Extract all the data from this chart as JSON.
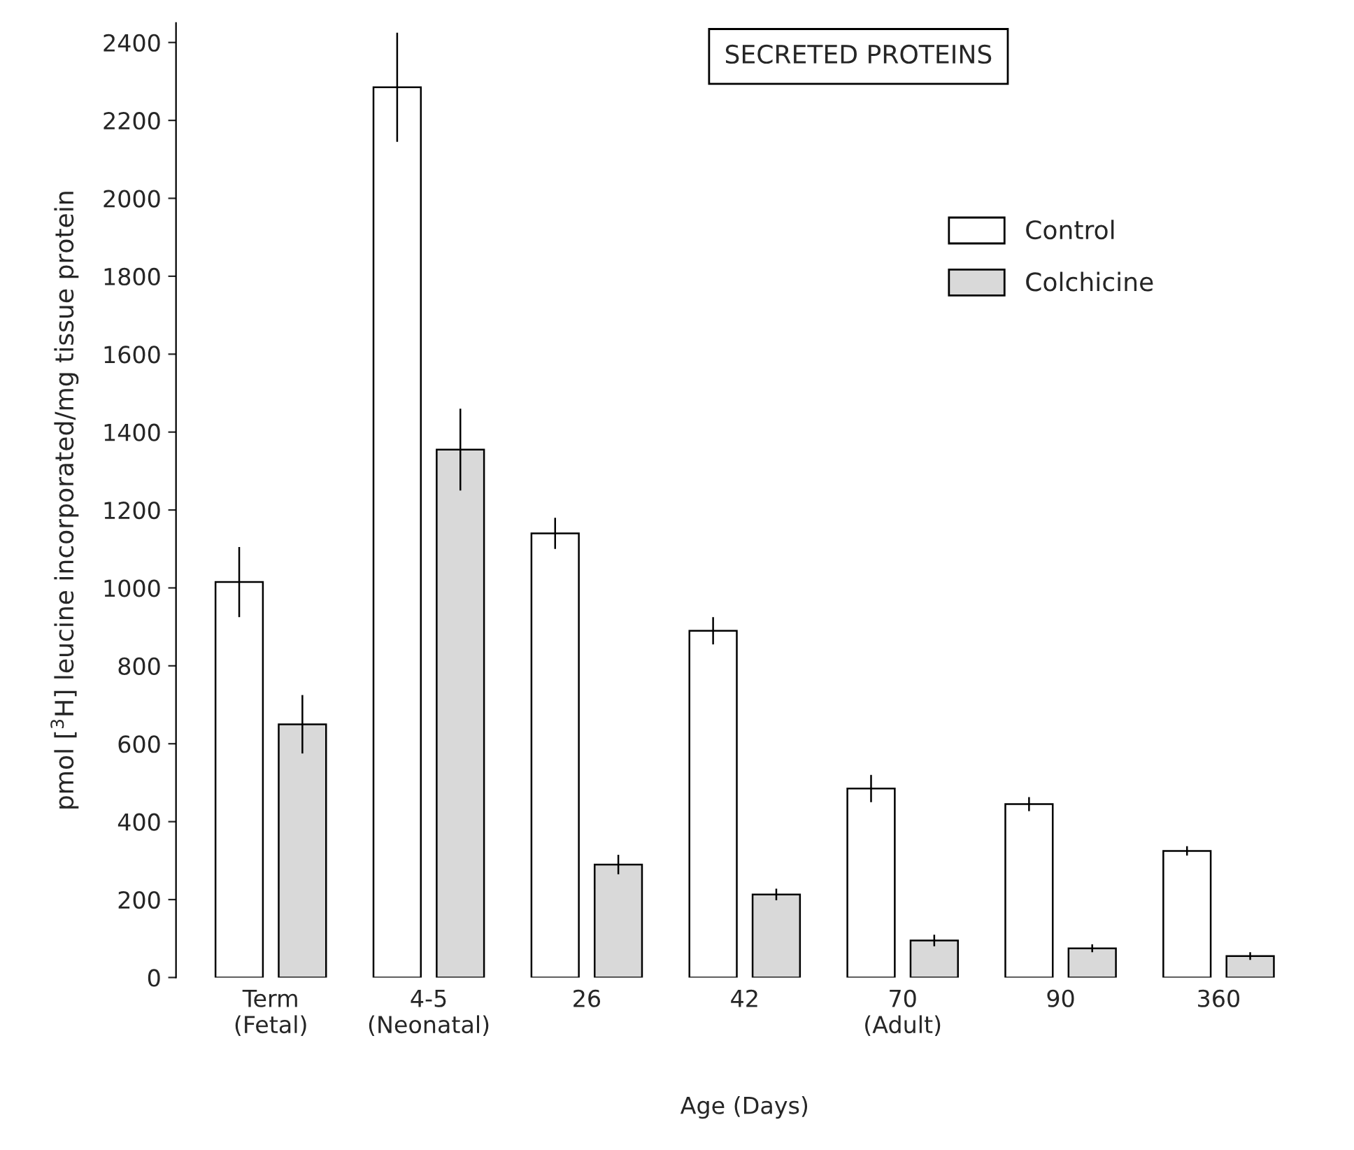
{
  "chart_data": {
    "type": "bar",
    "title": "SECRETED PROTEINS",
    "xlabel": "Age (Days)",
    "ylabel": "pmol [$^{3}$H] leucine incorporated/mg tissue protein",
    "categories": [
      "Term\n(Fetal)",
      "4-5\n(Neonatal)",
      "26",
      "42",
      "70\n(Adult)",
      "90",
      "360"
    ],
    "series": [
      {
        "name": "Control",
        "color": "#ffffff",
        "values": [
          1015,
          2285,
          1140,
          890,
          485,
          445,
          325
        ],
        "errors": [
          90,
          140,
          40,
          35,
          35,
          18,
          12
        ]
      },
      {
        "name": "Colchicine",
        "color": "#d9d9d9",
        "values": [
          650,
          1355,
          290,
          213,
          95,
          75,
          55
        ],
        "errors": [
          75,
          105,
          25,
          15,
          15,
          10,
          10
        ]
      }
    ],
    "ylim": [
      0,
      2450
    ],
    "yticks": [
      0,
      200,
      400,
      600,
      800,
      1000,
      1200,
      1400,
      1600,
      1800,
      2000,
      2200,
      2400
    ],
    "legend": "top right",
    "grid": false
  }
}
